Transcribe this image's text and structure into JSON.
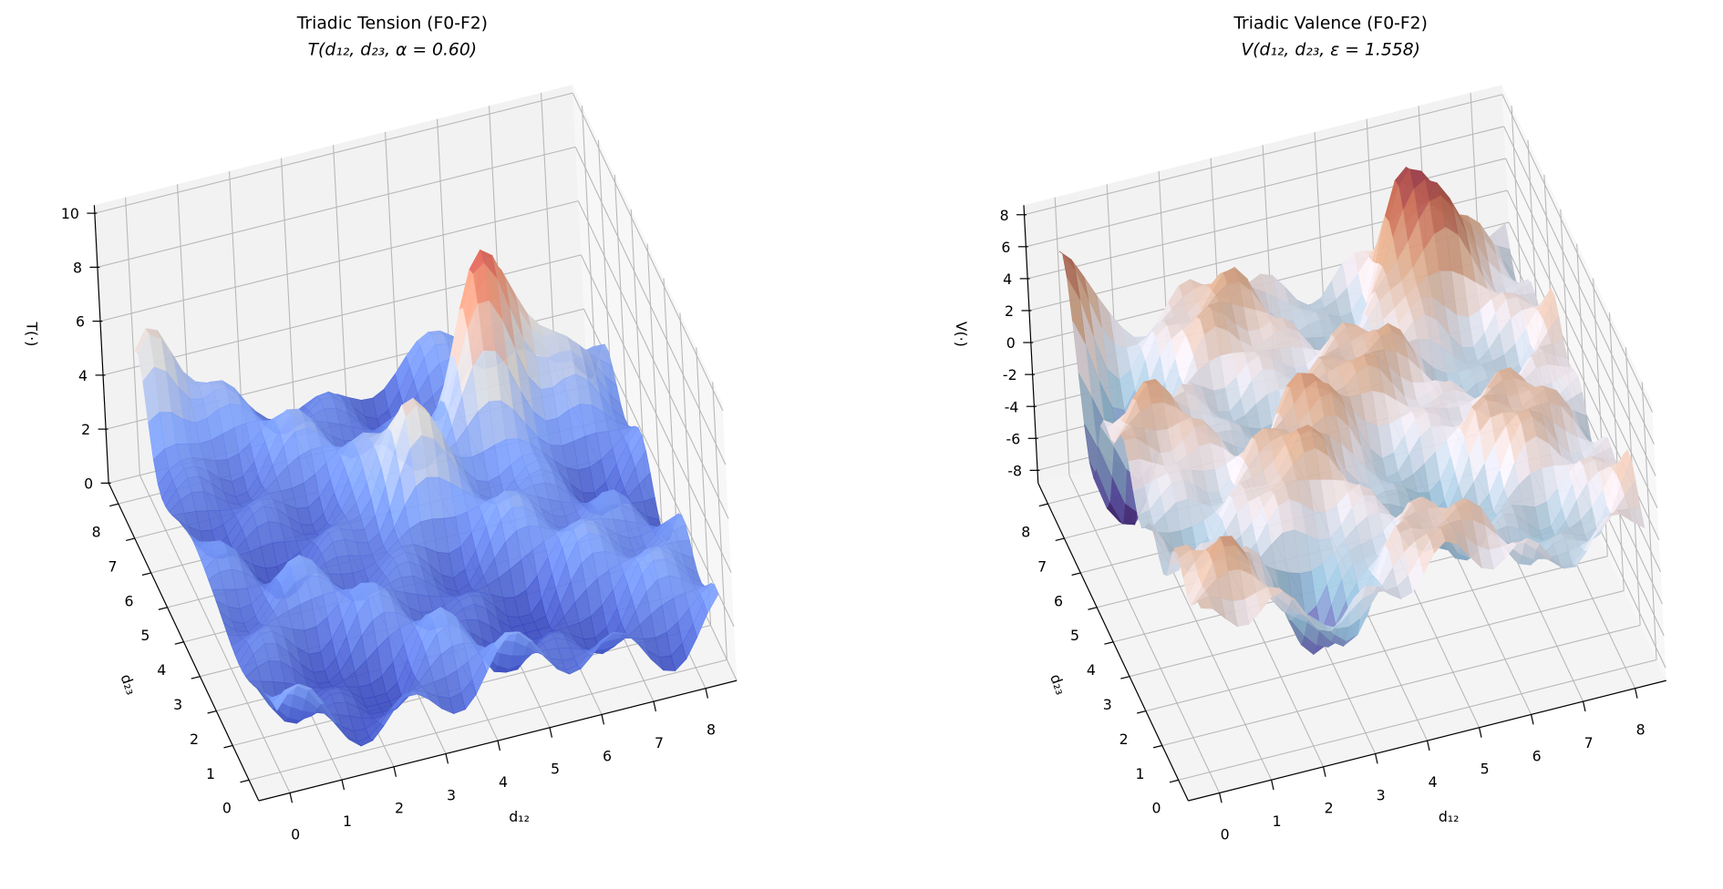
{
  "chart_data": [
    {
      "type": "surface",
      "title": "Triadic Tension (F0-F2)",
      "subtitle": "T(d₁₂, d₂₃, α = 0.60)",
      "xlabel": "d₁₂",
      "ylabel": "d₂₃",
      "zlabel": "T(·)",
      "colormap": "coolwarm",
      "xlim": [
        -0.6,
        8.6
      ],
      "ylim": [
        -0.6,
        8.6
      ],
      "zlim": [
        0,
        10.3
      ],
      "xticks": [
        "0",
        "1",
        "2",
        "3",
        "4",
        "5",
        "6",
        "7",
        "8"
      ],
      "yticks": [
        "0",
        "1",
        "2",
        "3",
        "4",
        "5",
        "6",
        "7",
        "8"
      ],
      "zticks": [
        "0",
        "2",
        "4",
        "6",
        "8",
        "10"
      ],
      "zmax_approx": 9.8,
      "grid": true
    },
    {
      "type": "surface",
      "title": "Triadic Valence (F0-F2)",
      "subtitle": "V(d₁₂, d₂₃, ε = 1.558)",
      "xlabel": "d₁₂",
      "ylabel": "d₂₃",
      "zlabel": "V(·)",
      "colormap": "twilight",
      "xlim": [
        -0.6,
        8.6
      ],
      "ylim": [
        -0.6,
        8.6
      ],
      "zlim": [
        -8.8,
        8.6
      ],
      "xticks": [
        "0",
        "1",
        "2",
        "3",
        "4",
        "5",
        "6",
        "7",
        "8"
      ],
      "yticks": [
        "0",
        "1",
        "2",
        "3",
        "4",
        "5",
        "6",
        "7",
        "8"
      ],
      "zticks": [
        "-8",
        "-6",
        "-4",
        "-2",
        "0",
        "2",
        "4",
        "6",
        "8"
      ],
      "zmax_approx": 8,
      "zmin_approx": -8,
      "grid": true
    }
  ]
}
